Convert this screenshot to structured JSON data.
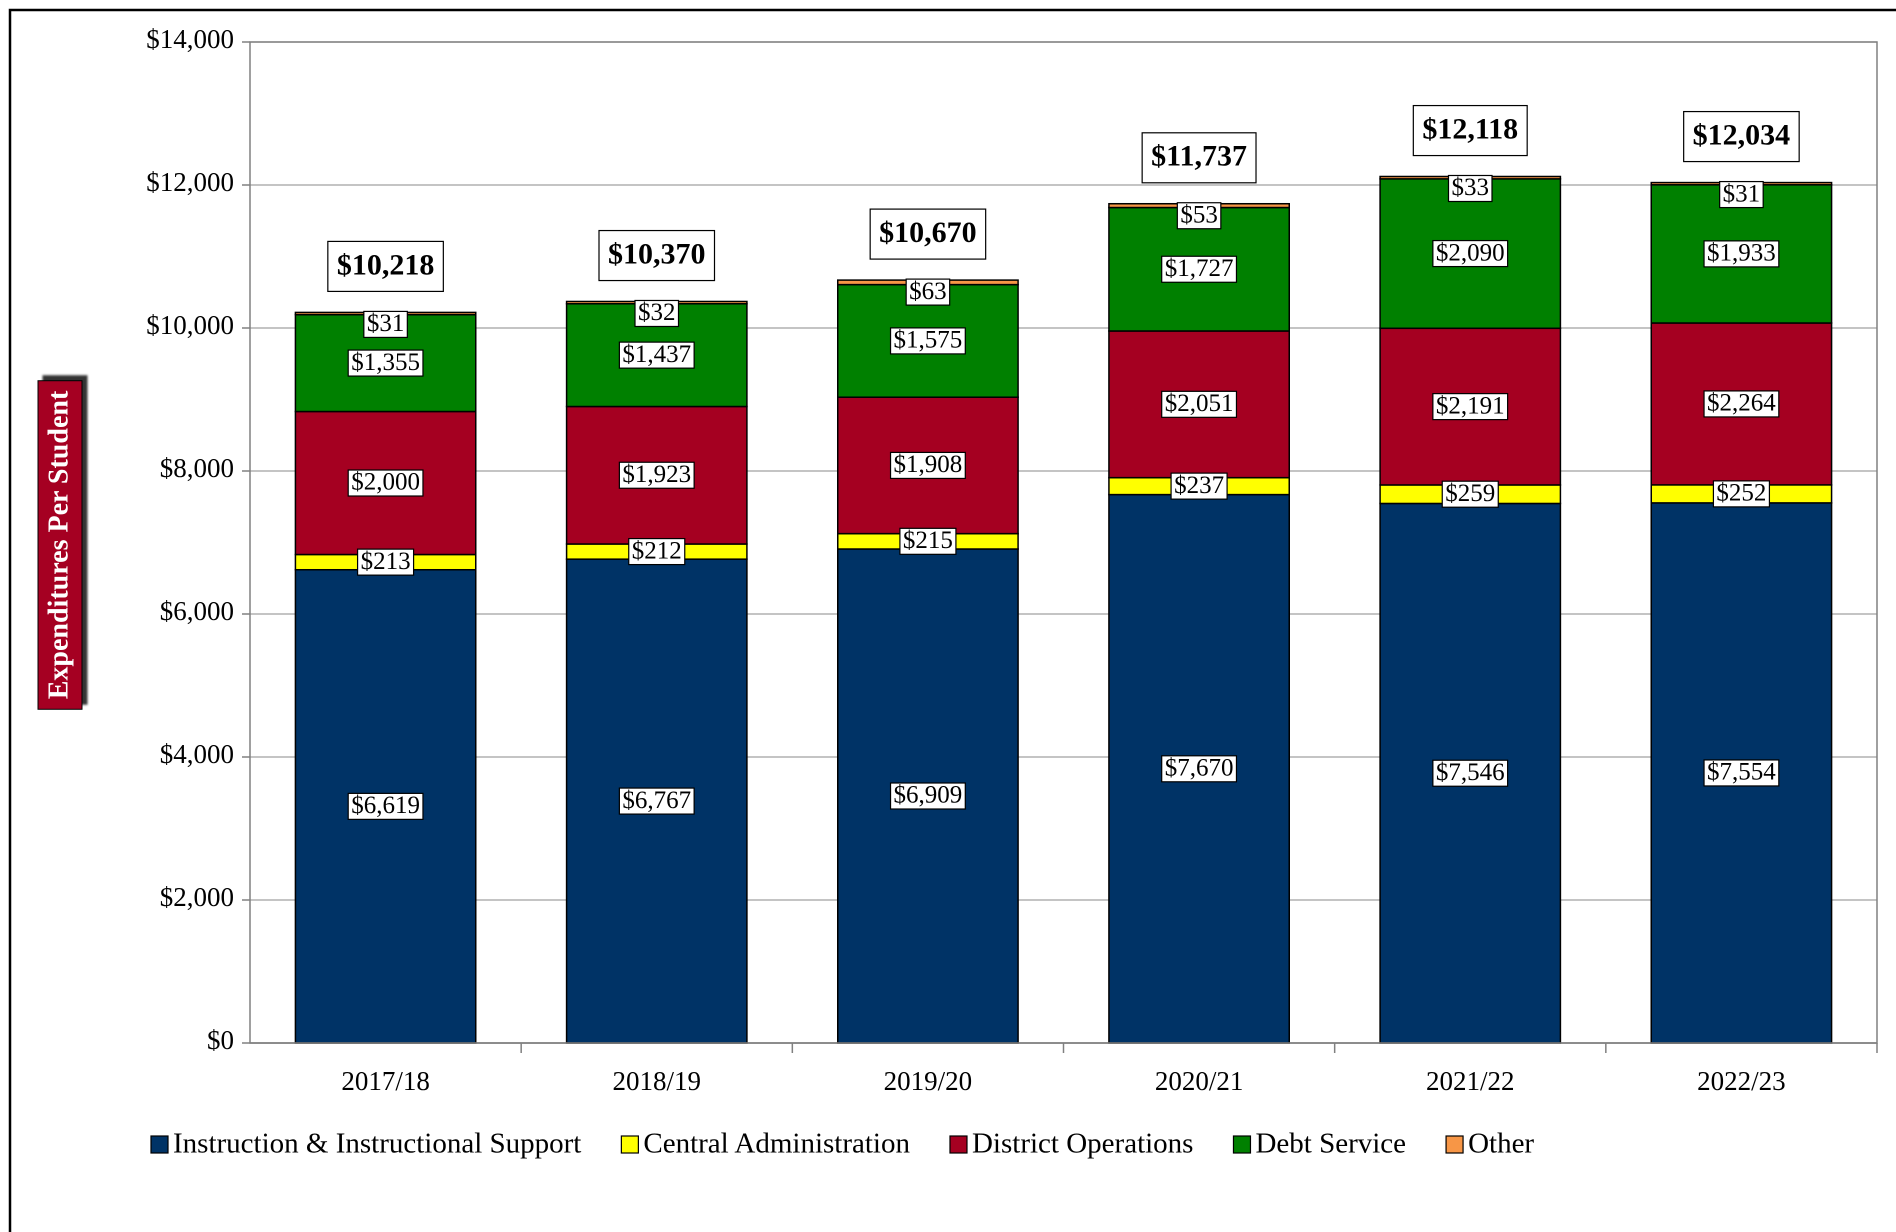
{
  "chart_data": {
    "type": "stacked_bar",
    "y_axis_label": "Expenditures Per Student",
    "categories": [
      "2017/18",
      "2018/19",
      "2019/20",
      "2020/21",
      "2021/22",
      "2022/23"
    ],
    "series": [
      {
        "name": "Instruction & Instructional Support",
        "color": "#003366",
        "values": [
          6619,
          6767,
          6909,
          7670,
          7546,
          7554
        ],
        "value_labels": [
          "$6,619",
          "$6,767",
          "$6,909",
          "$7,670",
          "$7,546",
          "$7,554"
        ]
      },
      {
        "name": "Central Administration",
        "color": "#ffff00",
        "values": [
          213,
          212,
          215,
          237,
          259,
          252
        ],
        "value_labels": [
          "$213",
          "$212",
          "$215",
          "$237",
          "$259",
          "$252"
        ]
      },
      {
        "name": "District Operations",
        "color": "#a50021",
        "values": [
          2000,
          1923,
          1908,
          2051,
          2191,
          2264
        ],
        "value_labels": [
          "$2,000",
          "$1,923",
          "$1,908",
          "$2,051",
          "$2,191",
          "$2,264"
        ]
      },
      {
        "name": "Debt Service",
        "color": "#008000",
        "values": [
          1355,
          1437,
          1575,
          1727,
          2090,
          1933
        ],
        "value_labels": [
          "$1,355",
          "$1,437",
          "$1,575",
          "$1,727",
          "$2,090",
          "$1,933"
        ]
      },
      {
        "name": "Other",
        "color": "#f79646",
        "values": [
          31,
          32,
          63,
          53,
          33,
          31
        ],
        "value_labels": [
          "$31",
          "$32",
          "$63",
          "$53",
          "$33",
          "$31"
        ]
      }
    ],
    "totals": {
      "values": [
        10218,
        10370,
        10670,
        11737,
        12118,
        12034
      ],
      "value_labels": [
        "$10,218",
        "$10,370",
        "$10,670",
        "$11,737",
        "$12,118",
        "$12,034"
      ]
    },
    "ylim": [
      0,
      14000
    ],
    "yticks": [
      {
        "value": 0,
        "label": "$0"
      },
      {
        "value": 2000,
        "label": "$2,000"
      },
      {
        "value": 4000,
        "label": "$4,000"
      },
      {
        "value": 6000,
        "label": "$6,000"
      },
      {
        "value": 8000,
        "label": "$8,000"
      },
      {
        "value": 10000,
        "label": "$10,000"
      },
      {
        "value": 12000,
        "label": "$12,000"
      },
      {
        "value": 14000,
        "label": "$14,000"
      }
    ],
    "grid": true,
    "legend": "bottom"
  }
}
